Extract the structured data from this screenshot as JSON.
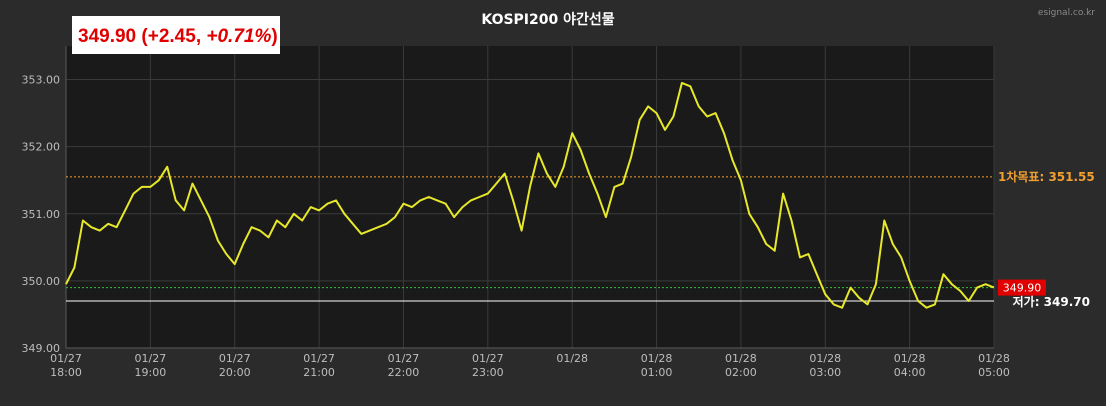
{
  "chart_data": {
    "type": "line",
    "title": "KOSPI200 야간선물",
    "watermark": "esignal.co.kr",
    "ticker": {
      "price": "349.90",
      "change": "+2.45",
      "percent": "+0.71%"
    },
    "ylim": [
      349.0,
      353.5
    ],
    "yticks": [
      "349.00",
      "350.00",
      "351.00",
      "352.00",
      "353.00"
    ],
    "xlim": [
      "01/27 18:00",
      "01/28 05:00"
    ],
    "xticks": [
      {
        "date": "01/27",
        "time": "18:00"
      },
      {
        "date": "01/27",
        "time": "19:00"
      },
      {
        "date": "01/27",
        "time": "20:00"
      },
      {
        "date": "01/27",
        "time": "21:00"
      },
      {
        "date": "01/27",
        "time": "22:00"
      },
      {
        "date": "01/27",
        "time": "23:00"
      },
      {
        "date": "01/28",
        "time": ""
      },
      {
        "date": "01/28",
        "time": "01:00"
      },
      {
        "date": "01/28",
        "time": "02:00"
      },
      {
        "date": "01/28",
        "time": "03:00"
      },
      {
        "date": "01/28",
        "time": "04:00"
      },
      {
        "date": "01/28",
        "time": "05:00"
      }
    ],
    "grid": true,
    "reference_lines": [
      {
        "label": "1차목표: 351.55",
        "value": 351.55,
        "color": "#f0a030",
        "style": "dotted"
      },
      {
        "label": "저가: 349.70",
        "value": 349.7,
        "color": "#ffffff",
        "style": "solid"
      },
      {
        "label": "349.90",
        "value": 349.9,
        "color": "#3bbf3b",
        "style": "dotted"
      }
    ],
    "last_price_box": {
      "label": "349.90",
      "color": "#e00000"
    },
    "series": [
      {
        "color": "#e8e82a",
        "x": [
          "01/27 18:00",
          "01/27 18:06",
          "01/27 18:12",
          "01/27 18:18",
          "01/27 18:24",
          "01/27 18:30",
          "01/27 18:36",
          "01/27 18:42",
          "01/27 18:48",
          "01/27 18:54",
          "01/27 19:00",
          "01/27 19:06",
          "01/27 19:12",
          "01/27 19:18",
          "01/27 19:24",
          "01/27 19:30",
          "01/27 19:36",
          "01/27 19:42",
          "01/27 19:48",
          "01/27 19:54",
          "01/27 20:00",
          "01/27 20:06",
          "01/27 20:12",
          "01/27 20:18",
          "01/27 20:24",
          "01/27 20:30",
          "01/27 20:36",
          "01/27 20:42",
          "01/27 20:48",
          "01/27 20:54",
          "01/27 21:00",
          "01/27 21:06",
          "01/27 21:12",
          "01/27 21:18",
          "01/27 21:24",
          "01/27 21:30",
          "01/27 21:36",
          "01/27 21:42",
          "01/27 21:48",
          "01/27 21:54",
          "01/27 22:00",
          "01/27 22:06",
          "01/27 22:12",
          "01/27 22:18",
          "01/27 22:24",
          "01/27 22:30",
          "01/27 22:36",
          "01/27 22:42",
          "01/27 22:48",
          "01/27 22:54",
          "01/27 23:00",
          "01/27 23:06",
          "01/27 23:12",
          "01/27 23:18",
          "01/27 23:24",
          "01/27 23:30",
          "01/27 23:36",
          "01/27 23:42",
          "01/27 23:48",
          "01/27 23:54",
          "01/28 00:00",
          "01/28 00:06",
          "01/28 00:12",
          "01/28 00:18",
          "01/28 00:24",
          "01/28 00:30",
          "01/28 00:36",
          "01/28 00:42",
          "01/28 00:48",
          "01/28 00:54",
          "01/28 01:00",
          "01/28 01:06",
          "01/28 01:12",
          "01/28 01:18",
          "01/28 01:24",
          "01/28 01:30",
          "01/28 01:36",
          "01/28 01:42",
          "01/28 01:48",
          "01/28 01:54",
          "01/28 02:00",
          "01/28 02:06",
          "01/28 02:12",
          "01/28 02:18",
          "01/28 02:24",
          "01/28 02:30",
          "01/28 02:36",
          "01/28 02:42",
          "01/28 02:48",
          "01/28 02:54",
          "01/28 03:00",
          "01/28 03:06",
          "01/28 03:12",
          "01/28 03:18",
          "01/28 03:24",
          "01/28 03:30",
          "01/28 03:36",
          "01/28 03:42",
          "01/28 03:48",
          "01/28 03:54",
          "01/28 04:00",
          "01/28 04:06",
          "01/28 04:12",
          "01/28 04:18",
          "01/28 04:24",
          "01/28 04:30",
          "01/28 04:36",
          "01/28 04:42",
          "01/28 04:48",
          "01/28 04:54",
          "01/28 05:00"
        ],
        "values": [
          349.95,
          350.2,
          350.9,
          350.8,
          350.75,
          350.85,
          350.8,
          351.05,
          351.3,
          351.4,
          351.4,
          351.5,
          351.7,
          351.2,
          351.05,
          351.45,
          351.2,
          350.95,
          350.6,
          350.4,
          350.25,
          350.55,
          350.8,
          350.75,
          350.65,
          350.9,
          350.8,
          351.0,
          350.9,
          351.1,
          351.05,
          351.15,
          351.2,
          351.0,
          350.85,
          350.7,
          350.75,
          350.8,
          350.85,
          350.95,
          351.15,
          351.1,
          351.2,
          351.25,
          351.2,
          351.15,
          350.95,
          351.1,
          351.2,
          351.25,
          351.3,
          351.45,
          351.6,
          351.2,
          350.75,
          351.4,
          351.9,
          351.6,
          351.4,
          351.7,
          352.2,
          351.95,
          351.6,
          351.3,
          350.95,
          351.4,
          351.45,
          351.85,
          352.4,
          352.6,
          352.5,
          352.25,
          352.45,
          352.95,
          352.9,
          352.6,
          352.45,
          352.5,
          352.2,
          351.8,
          351.5,
          351.0,
          350.8,
          350.55,
          350.45,
          351.3,
          350.9,
          350.35,
          350.4,
          350.1,
          349.8,
          349.65,
          349.6,
          349.9,
          349.75,
          349.65,
          349.95,
          350.9,
          350.55,
          350.35,
          350.0,
          349.7,
          349.6,
          349.65,
          350.1,
          349.95,
          349.85,
          349.7,
          349.9,
          349.95,
          349.9
        ]
      }
    ]
  }
}
